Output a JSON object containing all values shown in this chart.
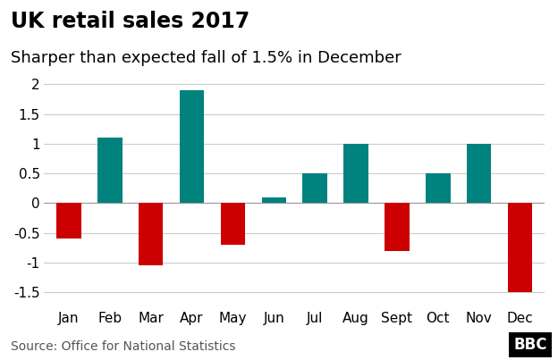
{
  "title": "UK retail sales 2017",
  "subtitle": "Sharper than expected fall of 1.5% in December",
  "categories": [
    "Jan",
    "Feb",
    "Mar",
    "Apr",
    "May",
    "Jun",
    "Jul",
    "Aug",
    "Sept",
    "Oct",
    "Nov",
    "Dec"
  ],
  "values": [
    -0.6,
    1.1,
    -1.05,
    1.9,
    -0.7,
    0.1,
    0.5,
    1.0,
    -0.8,
    0.5,
    1.0,
    -1.5
  ],
  "positive_color": "#00827F",
  "negative_color": "#CC0000",
  "background_color": "#FFFFFF",
  "grid_color": "#CCCCCC",
  "ylim": [
    -1.75,
    2.1
  ],
  "yticks": [
    -1.5,
    -1.0,
    -0.5,
    0,
    0.5,
    1.0,
    1.5,
    2.0
  ],
  "source_text": "Source: Office for National Statistics",
  "bbc_text": "BBC",
  "title_fontsize": 17,
  "subtitle_fontsize": 13,
  "tick_fontsize": 11,
  "source_fontsize": 10
}
